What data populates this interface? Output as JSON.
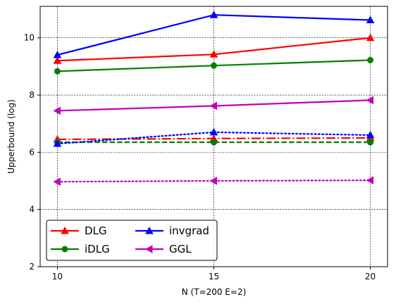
{
  "chart_data": {
    "type": "line",
    "title": "",
    "xlabel": "N (T=200 E=2)",
    "ylabel": "Upperbound (log)",
    "x": [
      10,
      15,
      20
    ],
    "xticks": [
      "10",
      "15",
      "20"
    ],
    "yticks": [
      "2",
      "4",
      "6",
      "8",
      "10"
    ],
    "xlim": [
      9.45,
      20.55
    ],
    "ylim": [
      2,
      11.1
    ],
    "grid": true,
    "legend_position": "lower left",
    "series": [
      {
        "name": "DLG",
        "color": "#ff0000",
        "marker": "triangle-up",
        "line_style": "solid",
        "values": [
          9.2,
          9.42,
          10.0
        ]
      },
      {
        "name": "iDLG",
        "color": "#008000",
        "marker": "circle",
        "line_style": "solid",
        "values": [
          8.83,
          9.03,
          9.22
        ]
      },
      {
        "name": "invgrad",
        "color": "#0000ff",
        "marker": "triangle-up",
        "line_style": "solid",
        "values": [
          9.4,
          10.8,
          10.62
        ]
      },
      {
        "name": "GGL",
        "color": "#bf00bf",
        "marker": "triangle-left",
        "line_style": "solid",
        "values": [
          7.45,
          7.62,
          7.82
        ]
      },
      {
        "name": "",
        "color": "#ff0000",
        "marker": "triangle-up",
        "line_style": "dashdot",
        "values": [
          6.45,
          6.48,
          6.5
        ]
      },
      {
        "name": "",
        "color": "#008000",
        "marker": "circle",
        "line_style": "dashed",
        "values": [
          6.35,
          6.35,
          6.35
        ]
      },
      {
        "name": "",
        "color": "#0000ff",
        "marker": "triangle-up",
        "line_style": "dotted",
        "values": [
          6.3,
          6.7,
          6.6
        ]
      },
      {
        "name": "",
        "color": "#bf00bf",
        "marker": "triangle-left",
        "line_style": "dotted",
        "values": [
          4.97,
          5.0,
          5.02
        ]
      }
    ],
    "legend": [
      {
        "name": "DLG",
        "color": "#ff0000",
        "marker": "triangle-up"
      },
      {
        "name": "invgrad",
        "color": "#0000ff",
        "marker": "triangle-up"
      },
      {
        "name": "iDLG",
        "color": "#008000",
        "marker": "circle"
      },
      {
        "name": "GGL",
        "color": "#bf00bf",
        "marker": "triangle-left"
      }
    ]
  }
}
